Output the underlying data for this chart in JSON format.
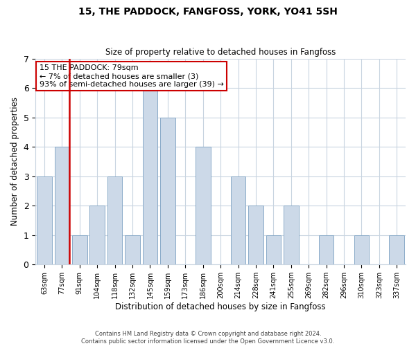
{
  "title": "15, THE PADDOCK, FANGFOSS, YORK, YO41 5SH",
  "subtitle": "Size of property relative to detached houses in Fangfoss",
  "xlabel": "Distribution of detached houses by size in Fangfoss",
  "ylabel": "Number of detached properties",
  "bar_labels": [
    "63sqm",
    "77sqm",
    "91sqm",
    "104sqm",
    "118sqm",
    "132sqm",
    "145sqm",
    "159sqm",
    "173sqm",
    "186sqm",
    "200sqm",
    "214sqm",
    "228sqm",
    "241sqm",
    "255sqm",
    "269sqm",
    "282sqm",
    "296sqm",
    "310sqm",
    "323sqm",
    "337sqm"
  ],
  "bar_heights": [
    3,
    4,
    1,
    2,
    3,
    1,
    6,
    5,
    0,
    4,
    0,
    3,
    2,
    1,
    2,
    0,
    1,
    0,
    1,
    0,
    1
  ],
  "bar_color": "#ccd9e8",
  "bar_edge_color": "#8aaac8",
  "highlight_bar_index": 1,
  "highlight_color": "#cc0000",
  "ylim": [
    0,
    7
  ],
  "yticks": [
    0,
    1,
    2,
    3,
    4,
    5,
    6,
    7
  ],
  "annotation_title": "15 THE PADDOCK: 79sqm",
  "annotation_line1": "← 7% of detached houses are smaller (3)",
  "annotation_line2": "93% of semi-detached houses are larger (39) →",
  "annotation_box_color": "#ffffff",
  "annotation_box_edge": "#cc0000",
  "footer_line1": "Contains HM Land Registry data © Crown copyright and database right 2024.",
  "footer_line2": "Contains public sector information licensed under the Open Government Licence v3.0.",
  "background_color": "#ffffff",
  "grid_color": "#c8d4e0"
}
